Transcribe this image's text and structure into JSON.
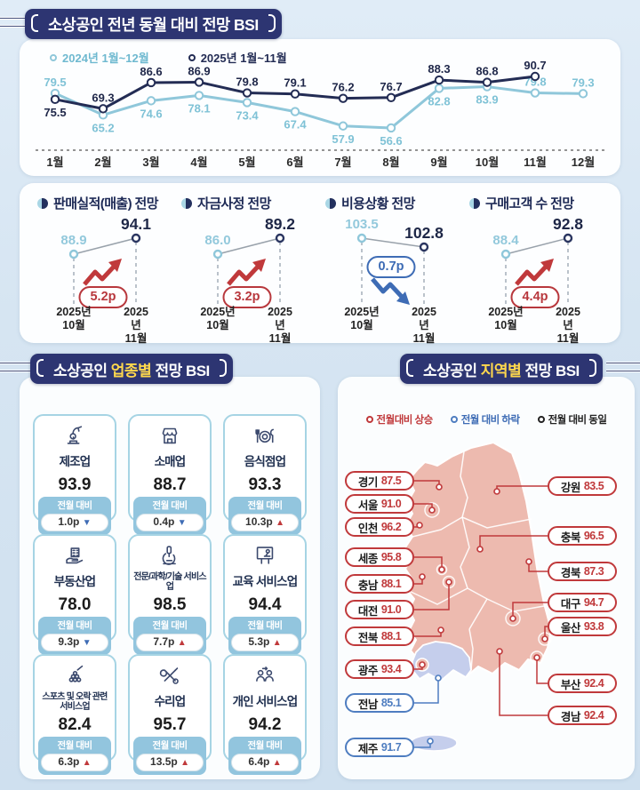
{
  "colors": {
    "navy": "#2d3572",
    "highlight_yellow": "#ffd84d",
    "up_red": "#c0393b",
    "down_blue": "#3e6cb5",
    "series_2024": "#8fc7da",
    "series_2025": "#232c54",
    "map_up_fill": "#edbaaf",
    "map_down_fill": "#c5ceec"
  },
  "titles": {
    "monthly": "소상공인 전년 동월 대비 전망 BSI",
    "industry_pre": "소상공인 ",
    "industry_hl": "업종별",
    "industry_post": " 전망 BSI",
    "region_pre": "소상공인 ",
    "region_hl": "지역별",
    "region_post": " 전망 BSI"
  },
  "chart_data": {
    "type": "line",
    "title": "소상공인 전년 동월 대비 전망 BSI",
    "categories": [
      "1월",
      "2월",
      "3월",
      "4월",
      "5월",
      "6월",
      "7월",
      "8월",
      "9월",
      "10월",
      "11월",
      "12월"
    ],
    "series": [
      {
        "name": "2024년 1월~12월",
        "color": "#8fc7da",
        "values": [
          79.5,
          65.2,
          74.6,
          78.1,
          73.4,
          67.4,
          57.9,
          56.6,
          82.8,
          83.9,
          79.8,
          79.3
        ]
      },
      {
        "name": "2025년 1월~11월",
        "color": "#232c54",
        "values": [
          75.5,
          69.3,
          86.6,
          86.9,
          79.8,
          79.1,
          76.2,
          76.7,
          88.3,
          86.8,
          90.7,
          null
        ]
      }
    ],
    "ylim": [
      50,
      95
    ],
    "grid": false,
    "legend_position": "top-left"
  },
  "kpi_section": {
    "items": [
      {
        "title": "판매실적(매출) 전망",
        "prev": "88.9",
        "next": "94.1",
        "change": "5.2p",
        "direction": "up",
        "prev_label": "2025년\n10월",
        "next_label": "2025년\n11월"
      },
      {
        "title": "자금사정 전망",
        "prev": "86.0",
        "next": "89.2",
        "change": "3.2p",
        "direction": "up",
        "prev_label": "2025년\n10월",
        "next_label": "2025년\n11월"
      },
      {
        "title": "비용상황 전망",
        "prev": "103.5",
        "next": "102.8",
        "change": "0.7p",
        "direction": "down",
        "prev_label": "2025년\n10월",
        "next_label": "2025년\n11월"
      },
      {
        "title": "구매고객 수 전망",
        "prev": "88.4",
        "next": "92.8",
        "change": "4.4p",
        "direction": "up",
        "prev_label": "2025년\n10월",
        "next_label": "2025년\n11월"
      }
    ]
  },
  "industry_section": {
    "badge_label": "전월 대비",
    "cards": [
      {
        "name": "제조업",
        "icon": "factory-icon",
        "value": "93.9",
        "change": "1.0p",
        "arrow": "▼",
        "direction": "down",
        "small": false
      },
      {
        "name": "소매업",
        "icon": "store-icon",
        "value": "88.7",
        "change": "0.4p",
        "arrow": "▼",
        "direction": "down",
        "small": false
      },
      {
        "name": "음식점업",
        "icon": "restaurant-icon",
        "value": "93.3",
        "change": "10.3p",
        "arrow": "▲",
        "direction": "up",
        "small": false
      },
      {
        "name": "부동산업",
        "icon": "realestate-icon",
        "value": "78.0",
        "change": "9.3p",
        "arrow": "▼",
        "direction": "down",
        "small": false
      },
      {
        "name": "전문/과학/기술 서비스업",
        "icon": "microscope-icon",
        "value": "98.5",
        "change": "7.7p",
        "arrow": "▲",
        "direction": "up",
        "small": true
      },
      {
        "name": "교육 서비스업",
        "icon": "education-icon",
        "value": "94.4",
        "change": "5.3p",
        "arrow": "▲",
        "direction": "up",
        "small": false
      },
      {
        "name": "스포츠 및 오락 관련 서비스업",
        "icon": "billiards-icon",
        "value": "82.4",
        "change": "6.3p",
        "arrow": "▲",
        "direction": "up",
        "small": true
      },
      {
        "name": "수리업",
        "icon": "tools-icon",
        "value": "95.7",
        "change": "13.5p",
        "arrow": "▲",
        "direction": "up",
        "small": false
      },
      {
        "name": "개인 서비스업",
        "icon": "people-icon",
        "value": "94.2",
        "change": "6.4p",
        "arrow": "▲",
        "direction": "up",
        "small": false
      }
    ]
  },
  "region_section": {
    "legend": [
      {
        "label": "전월대비 상승",
        "type": "up"
      },
      {
        "label": "전월 대비 하락",
        "type": "down"
      },
      {
        "label": "전월 대비 동일",
        "type": "same"
      }
    ],
    "regions": [
      {
        "id": "gyeonggi",
        "name": "경기",
        "value": "87.5",
        "direction": "up"
      },
      {
        "id": "seoul",
        "name": "서울",
        "value": "91.0",
        "direction": "up"
      },
      {
        "id": "incheon",
        "name": "인천",
        "value": "96.2",
        "direction": "up"
      },
      {
        "id": "sejong",
        "name": "세종",
        "value": "95.8",
        "direction": "up"
      },
      {
        "id": "chungnam",
        "name": "충남",
        "value": "88.1",
        "direction": "up"
      },
      {
        "id": "daejeon",
        "name": "대전",
        "value": "91.0",
        "direction": "up"
      },
      {
        "id": "jeonbuk",
        "name": "전북",
        "value": "88.1",
        "direction": "up"
      },
      {
        "id": "gwangju",
        "name": "광주",
        "value": "93.4",
        "direction": "up"
      },
      {
        "id": "jeonnam",
        "name": "전남",
        "value": "85.1",
        "direction": "down"
      },
      {
        "id": "jeju",
        "name": "제주",
        "value": "91.7",
        "direction": "down"
      },
      {
        "id": "gangwon",
        "name": "강원",
        "value": "83.5",
        "direction": "up"
      },
      {
        "id": "chungbuk",
        "name": "충북",
        "value": "96.5",
        "direction": "up"
      },
      {
        "id": "gyeongbuk",
        "name": "경북",
        "value": "87.3",
        "direction": "up"
      },
      {
        "id": "daegu",
        "name": "대구",
        "value": "94.7",
        "direction": "up"
      },
      {
        "id": "ulsan",
        "name": "울산",
        "value": "93.8",
        "direction": "up"
      },
      {
        "id": "busan",
        "name": "부산",
        "value": "92.4",
        "direction": "up"
      },
      {
        "id": "gyeongnam",
        "name": "경남",
        "value": "92.4",
        "direction": "up"
      }
    ]
  }
}
